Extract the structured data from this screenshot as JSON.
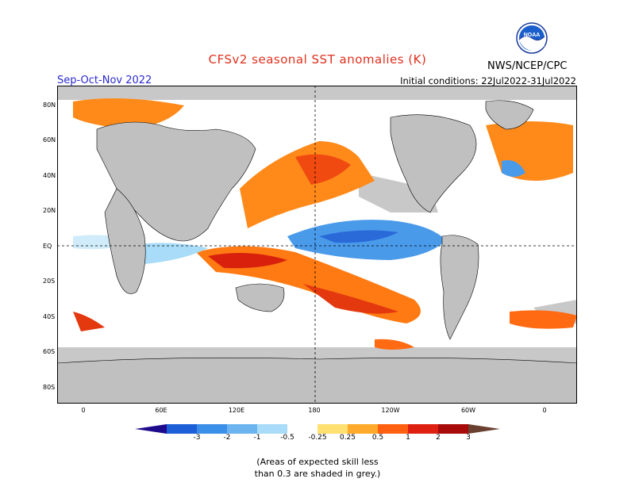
{
  "title": "CFSv2 seasonal SST anomalies (K)",
  "period": "Sep-Oct-Nov 2022",
  "initial_conditions": "Initial conditions: 22Jul2022-31Jul2022",
  "agency": "NWS/NCEP/CPC",
  "logo_text": "NOAA",
  "lat_labels": [
    "80N",
    "60N",
    "40N",
    "20N",
    "EQ",
    "20S",
    "40S",
    "60S",
    "80S"
  ],
  "lon_labels": [
    "0",
    "60E",
    "120E",
    "180",
    "120W",
    "60W",
    "0"
  ],
  "colorbar": {
    "labels": [
      "-3",
      "-2",
      "-1",
      "-0.5",
      "-0.25",
      "0.25",
      "0.5",
      "1",
      "2",
      "3"
    ],
    "colors": [
      "#1e0a8c",
      "#1c5fd6",
      "#3c8fe8",
      "#6cb4f0",
      "#a8dcf8",
      "#ffffff",
      "#ffe070",
      "#ffaa2a",
      "#ff6010",
      "#dd2010",
      "#a80a0a",
      "#6a4030"
    ]
  },
  "note_line1": "(Areas of expected skill less",
  "note_line2": "than 0.3 are shaded in grey.)",
  "colors": {
    "land": "#c0c0c0",
    "ocean_grey": "#c8c8c8",
    "title": "#e0301e",
    "period": "#2a2ad0"
  }
}
